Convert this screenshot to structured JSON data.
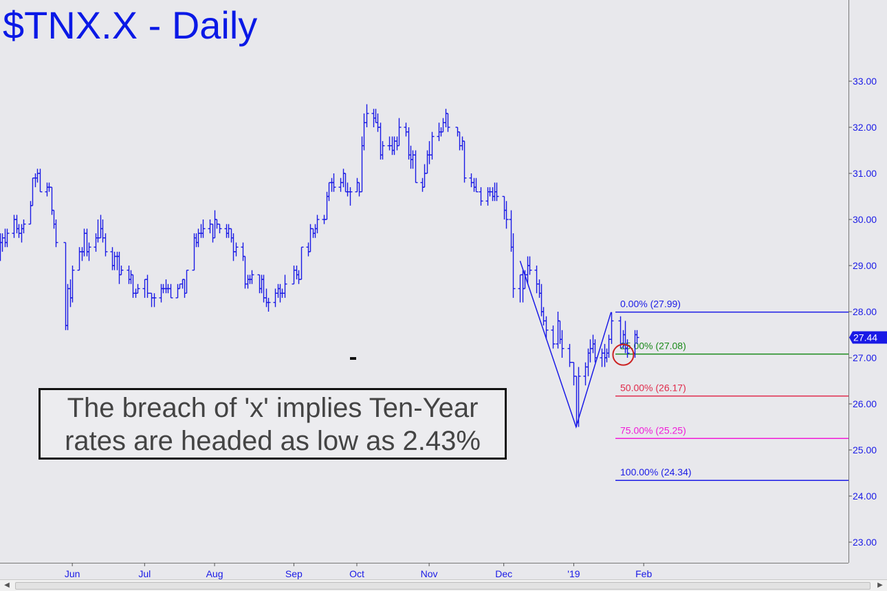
{
  "title": "$TNX.X - Daily",
  "annotation": "The breach of 'x' implies Ten-Year\nrates are headed as low as 2.43%",
  "chart_data": {
    "type": "ohlc",
    "series_color": "#1a1ae6",
    "ylim": [
      22.5,
      34.0
    ],
    "y_ticks": [
      23,
      24,
      25,
      26,
      27,
      28,
      29,
      30,
      31,
      32,
      33
    ],
    "x_labels": [
      "Jun",
      "Jul",
      "Aug",
      "Sep",
      "Oct",
      "Nov",
      "Dec",
      "'19",
      "Feb"
    ],
    "x_label_dates": [
      "2018-06-01",
      "2018-07-02",
      "2018-08-01",
      "2018-09-04",
      "2018-10-01",
      "2018-11-01",
      "2018-12-03",
      "2019-01-02",
      "2019-02-01"
    ],
    "last_price": "27.44",
    "marker_x_label": "x",
    "bars": [
      [
        "2018-05-01",
        29.4,
        29.7,
        29.1,
        29.5
      ],
      [
        "2018-05-02",
        29.5,
        29.7,
        29.3,
        29.6
      ],
      [
        "2018-05-03",
        29.6,
        29.8,
        29.4,
        29.5
      ],
      [
        "2018-05-04",
        29.5,
        29.8,
        29.4,
        29.7
      ],
      [
        "2018-05-07",
        29.7,
        30.1,
        29.6,
        30.0
      ],
      [
        "2018-05-08",
        30.0,
        30.1,
        29.7,
        29.8
      ],
      [
        "2018-05-09",
        29.8,
        29.9,
        29.6,
        29.7
      ],
      [
        "2018-05-10",
        29.7,
        29.9,
        29.5,
        29.8
      ],
      [
        "2018-05-11",
        29.8,
        30.0,
        29.7,
        29.9
      ],
      [
        "2018-05-14",
        29.9,
        30.4,
        29.9,
        30.3
      ],
      [
        "2018-05-15",
        30.3,
        30.9,
        30.3,
        30.9
      ],
      [
        "2018-05-16",
        30.9,
        31.0,
        30.7,
        30.9
      ],
      [
        "2018-05-17",
        30.9,
        31.1,
        30.8,
        31.0
      ],
      [
        "2018-05-18",
        31.0,
        31.1,
        30.6,
        30.6
      ],
      [
        "2018-05-21",
        30.6,
        30.8,
        30.5,
        30.7
      ],
      [
        "2018-05-22",
        30.7,
        30.8,
        30.6,
        30.7
      ],
      [
        "2018-05-23",
        30.7,
        30.7,
        30.1,
        30.2
      ],
      [
        "2018-05-24",
        30.2,
        30.2,
        29.8,
        29.9
      ],
      [
        "2018-05-25",
        29.9,
        30.0,
        29.4,
        29.5
      ],
      [
        "2018-05-29",
        29.5,
        29.5,
        27.6,
        27.7
      ],
      [
        "2018-05-30",
        27.7,
        28.6,
        27.6,
        28.5
      ],
      [
        "2018-05-31",
        28.5,
        28.7,
        28.1,
        28.3
      ],
      [
        "2018-06-01",
        28.3,
        29.0,
        28.2,
        28.9
      ],
      [
        "2018-06-04",
        28.9,
        29.4,
        28.9,
        29.3
      ],
      [
        "2018-06-05",
        29.3,
        29.4,
        29.1,
        29.3
      ],
      [
        "2018-06-06",
        29.3,
        29.8,
        29.2,
        29.7
      ],
      [
        "2018-06-07",
        29.7,
        29.8,
        29.2,
        29.3
      ],
      [
        "2018-06-08",
        29.3,
        29.5,
        29.1,
        29.4
      ],
      [
        "2018-06-11",
        29.4,
        29.7,
        29.3,
        29.6
      ],
      [
        "2018-06-12",
        29.6,
        30.0,
        29.5,
        29.6
      ],
      [
        "2018-06-13",
        29.6,
        30.1,
        29.6,
        29.8
      ],
      [
        "2018-06-14",
        29.8,
        30.0,
        29.5,
        29.6
      ],
      [
        "2018-06-15",
        29.6,
        29.7,
        29.2,
        29.3
      ],
      [
        "2018-06-18",
        29.3,
        29.4,
        28.9,
        29.0
      ],
      [
        "2018-06-19",
        29.0,
        29.3,
        28.9,
        29.2
      ],
      [
        "2018-06-20",
        29.2,
        29.3,
        28.9,
        29.2
      ],
      [
        "2018-06-21",
        29.2,
        29.3,
        28.6,
        28.8
      ],
      [
        "2018-06-22",
        28.8,
        29.0,
        28.8,
        28.9
      ],
      [
        "2018-06-25",
        28.9,
        29.0,
        28.6,
        28.7
      ],
      [
        "2018-06-26",
        28.7,
        28.9,
        28.6,
        28.8
      ],
      [
        "2018-06-27",
        28.8,
        28.8,
        28.3,
        28.4
      ],
      [
        "2018-06-28",
        28.4,
        28.5,
        28.3,
        28.4
      ],
      [
        "2018-06-29",
        28.4,
        28.6,
        28.4,
        28.5
      ],
      [
        "2018-07-02",
        28.5,
        28.7,
        28.3,
        28.7
      ],
      [
        "2018-07-03",
        28.7,
        28.8,
        28.3,
        28.4
      ],
      [
        "2018-07-05",
        28.4,
        28.4,
        28.1,
        28.3
      ],
      [
        "2018-07-06",
        28.3,
        28.4,
        28.1,
        28.3
      ],
      [
        "2018-07-09",
        28.3,
        28.6,
        28.2,
        28.5
      ],
      [
        "2018-07-10",
        28.5,
        28.6,
        28.4,
        28.5
      ],
      [
        "2018-07-11",
        28.5,
        28.7,
        28.4,
        28.5
      ],
      [
        "2018-07-12",
        28.5,
        28.6,
        28.4,
        28.5
      ],
      [
        "2018-07-13",
        28.5,
        28.6,
        28.3,
        28.3
      ],
      [
        "2018-07-16",
        28.3,
        28.6,
        28.3,
        28.5
      ],
      [
        "2018-07-17",
        28.5,
        28.6,
        28.5,
        28.6
      ],
      [
        "2018-07-18",
        28.6,
        28.7,
        28.5,
        28.7
      ],
      [
        "2018-07-19",
        28.7,
        28.7,
        28.3,
        28.4
      ],
      [
        "2018-07-20",
        28.4,
        28.9,
        28.4,
        28.9
      ],
      [
        "2018-07-23",
        28.9,
        29.7,
        28.9,
        29.6
      ],
      [
        "2018-07-24",
        29.6,
        29.7,
        29.4,
        29.5
      ],
      [
        "2018-07-25",
        29.5,
        29.8,
        29.4,
        29.7
      ],
      [
        "2018-07-26",
        29.7,
        29.9,
        29.6,
        29.7
      ],
      [
        "2018-07-27",
        29.7,
        30.0,
        29.6,
        29.8
      ],
      [
        "2018-07-30",
        29.8,
        30.0,
        29.7,
        29.9
      ],
      [
        "2018-07-31",
        29.9,
        29.9,
        29.5,
        29.6
      ],
      [
        "2018-08-01",
        29.6,
        30.2,
        29.6,
        30.0
      ],
      [
        "2018-08-02",
        30.0,
        30.0,
        29.8,
        29.9
      ],
      [
        "2018-08-03",
        29.9,
        29.9,
        29.7,
        29.8
      ],
      [
        "2018-08-06",
        29.8,
        29.9,
        29.6,
        29.7
      ],
      [
        "2018-08-07",
        29.7,
        29.9,
        29.6,
        29.8
      ],
      [
        "2018-08-08",
        29.8,
        29.8,
        29.5,
        29.6
      ],
      [
        "2018-08-09",
        29.6,
        29.7,
        29.1,
        29.3
      ],
      [
        "2018-08-10",
        29.3,
        29.5,
        29.2,
        29.4
      ],
      [
        "2018-08-13",
        29.4,
        29.5,
        29.1,
        29.2
      ],
      [
        "2018-08-14",
        29.2,
        29.2,
        28.5,
        28.6
      ],
      [
        "2018-08-15",
        28.6,
        28.8,
        28.5,
        28.7
      ],
      [
        "2018-08-16",
        28.7,
        28.8,
        28.6,
        28.7
      ],
      [
        "2018-08-17",
        28.7,
        28.9,
        28.6,
        28.8
      ],
      [
        "2018-08-20",
        28.8,
        28.8,
        28.4,
        28.5
      ],
      [
        "2018-08-21",
        28.5,
        28.8,
        28.4,
        28.7
      ],
      [
        "2018-08-22",
        28.7,
        28.8,
        28.2,
        28.3
      ],
      [
        "2018-08-23",
        28.3,
        28.5,
        28.1,
        28.2
      ],
      [
        "2018-08-24",
        28.2,
        28.3,
        28.0,
        28.2
      ],
      [
        "2018-08-27",
        28.2,
        28.5,
        28.1,
        28.4
      ],
      [
        "2018-08-28",
        28.4,
        28.6,
        28.3,
        28.5
      ],
      [
        "2018-08-29",
        28.5,
        28.6,
        28.2,
        28.4
      ],
      [
        "2018-08-30",
        28.4,
        28.5,
        28.3,
        28.4
      ],
      [
        "2018-08-31",
        28.4,
        28.8,
        28.3,
        28.6
      ],
      [
        "2018-09-04",
        28.6,
        29.0,
        28.6,
        28.9
      ],
      [
        "2018-09-05",
        28.9,
        29.0,
        28.7,
        28.8
      ],
      [
        "2018-09-06",
        28.8,
        28.9,
        28.6,
        28.7
      ],
      [
        "2018-09-07",
        28.7,
        29.4,
        28.7,
        29.4
      ],
      [
        "2018-09-10",
        29.4,
        29.5,
        29.2,
        29.3
      ],
      [
        "2018-09-11",
        29.3,
        29.9,
        29.3,
        29.8
      ],
      [
        "2018-09-12",
        29.8,
        29.8,
        29.6,
        29.7
      ],
      [
        "2018-09-13",
        29.7,
        29.9,
        29.6,
        29.8
      ],
      [
        "2018-09-14",
        29.8,
        30.1,
        29.7,
        30.0
      ],
      [
        "2018-09-17",
        30.0,
        30.1,
        29.9,
        30.0
      ],
      [
        "2018-09-18",
        30.0,
        30.6,
        30.0,
        30.5
      ],
      [
        "2018-09-19",
        30.5,
        30.8,
        30.4,
        30.8
      ],
      [
        "2018-09-20",
        30.8,
        30.9,
        30.6,
        30.8
      ],
      [
        "2018-09-21",
        30.8,
        31.0,
        30.6,
        30.7
      ],
      [
        "2018-09-24",
        30.7,
        30.9,
        30.6,
        30.8
      ],
      [
        "2018-09-25",
        30.8,
        31.1,
        30.7,
        31.0
      ],
      [
        "2018-09-26",
        31.0,
        31.0,
        30.6,
        30.6
      ],
      [
        "2018-09-27",
        30.6,
        30.8,
        30.5,
        30.6
      ],
      [
        "2018-09-28",
        30.6,
        30.7,
        30.3,
        30.6
      ],
      [
        "2018-10-01",
        30.6,
        30.9,
        30.6,
        30.8
      ],
      [
        "2018-10-02",
        30.8,
        30.8,
        30.5,
        30.6
      ],
      [
        "2018-10-03",
        30.6,
        31.8,
        30.6,
        31.6
      ],
      [
        "2018-10-04",
        31.6,
        32.3,
        31.5,
        32.1
      ],
      [
        "2018-10-05",
        32.1,
        32.5,
        32.0,
        32.3
      ],
      [
        "2018-10-08",
        32.3,
        32.4,
        32.0,
        32.2
      ],
      [
        "2018-10-09",
        32.2,
        32.4,
        32.1,
        32.1
      ],
      [
        "2018-10-10",
        32.1,
        32.3,
        31.9,
        32.0
      ],
      [
        "2018-10-11",
        32.0,
        32.1,
        31.3,
        31.4
      ],
      [
        "2018-10-12",
        31.4,
        31.7,
        31.3,
        31.6
      ],
      [
        "2018-10-15",
        31.6,
        31.8,
        31.5,
        31.6
      ],
      [
        "2018-10-16",
        31.6,
        31.8,
        31.4,
        31.5
      ],
      [
        "2018-10-17",
        31.5,
        31.8,
        31.4,
        31.7
      ],
      [
        "2018-10-18",
        31.7,
        31.8,
        31.5,
        31.6
      ],
      [
        "2018-10-19",
        31.6,
        32.2,
        31.6,
        32.0
      ],
      [
        "2018-10-22",
        32.0,
        32.1,
        31.8,
        31.9
      ],
      [
        "2018-10-23",
        31.9,
        32.0,
        31.3,
        31.4
      ],
      [
        "2018-10-24",
        31.4,
        31.6,
        31.1,
        31.3
      ],
      [
        "2018-10-25",
        31.3,
        31.5,
        31.1,
        31.4
      ],
      [
        "2018-10-26",
        31.4,
        31.5,
        30.8,
        30.8
      ],
      [
        "2018-10-29",
        30.8,
        30.9,
        30.6,
        30.7
      ],
      [
        "2018-10-30",
        30.7,
        31.2,
        30.7,
        31.0
      ],
      [
        "2018-10-31",
        31.0,
        31.5,
        31.0,
        31.4
      ],
      [
        "2018-11-01",
        31.4,
        31.7,
        31.2,
        31.4
      ],
      [
        "2018-11-02",
        31.4,
        31.9,
        31.3,
        31.8
      ],
      [
        "2018-11-05",
        31.8,
        32.1,
        31.7,
        31.9
      ],
      [
        "2018-11-06",
        31.9,
        32.0,
        31.8,
        31.9
      ],
      [
        "2018-11-07",
        31.9,
        32.2,
        31.9,
        32.1
      ],
      [
        "2018-11-08",
        32.1,
        32.4,
        32.0,
        32.3
      ],
      [
        "2018-11-09",
        32.3,
        32.3,
        31.9,
        32.0
      ],
      [
        "2018-11-13",
        32.0,
        32.0,
        31.8,
        31.9
      ],
      [
        "2018-11-14",
        31.9,
        31.9,
        31.5,
        31.6
      ],
      [
        "2018-11-15",
        31.6,
        31.8,
        31.5,
        31.7
      ],
      [
        "2018-11-16",
        31.7,
        31.7,
        30.8,
        30.9
      ],
      [
        "2018-11-19",
        30.9,
        31.0,
        30.7,
        30.8
      ],
      [
        "2018-11-20",
        30.8,
        30.9,
        30.6,
        30.7
      ],
      [
        "2018-11-21",
        30.7,
        30.9,
        30.6,
        30.6
      ],
      [
        "2018-11-23",
        30.6,
        30.7,
        30.3,
        30.4
      ],
      [
        "2018-11-26",
        30.4,
        30.7,
        30.3,
        30.6
      ],
      [
        "2018-11-27",
        30.6,
        30.7,
        30.5,
        30.6
      ],
      [
        "2018-11-28",
        30.6,
        30.7,
        30.4,
        30.5
      ],
      [
        "2018-11-29",
        30.5,
        30.8,
        30.4,
        30.6
      ],
      [
        "2018-11-30",
        30.6,
        30.8,
        30.4,
        30.5
      ],
      [
        "2018-12-03",
        30.5,
        30.5,
        30.0,
        30.2
      ],
      [
        "2018-12-04",
        30.2,
        30.4,
        29.8,
        30.0
      ],
      [
        "2018-12-06",
        30.0,
        30.2,
        29.3,
        29.4
      ],
      [
        "2018-12-07",
        29.4,
        29.7,
        28.3,
        28.5
      ],
      [
        "2018-12-10",
        28.5,
        28.8,
        28.2,
        28.8
      ],
      [
        "2018-12-11",
        28.8,
        28.9,
        28.2,
        28.5
      ],
      [
        "2018-12-12",
        28.5,
        28.9,
        28.5,
        28.8
      ],
      [
        "2018-12-13",
        28.8,
        29.2,
        28.6,
        29.0
      ],
      [
        "2018-12-14",
        29.0,
        29.2,
        28.8,
        28.9
      ],
      [
        "2018-12-17",
        28.9,
        29.0,
        28.4,
        28.6
      ],
      [
        "2018-12-18",
        28.6,
        28.7,
        28.3,
        28.4
      ],
      [
        "2018-12-19",
        28.4,
        28.6,
        27.9,
        28.0
      ],
      [
        "2018-12-20",
        28.0,
        28.1,
        27.7,
        27.8
      ],
      [
        "2018-12-21",
        27.8,
        27.9,
        27.4,
        27.6
      ],
      [
        "2018-12-24",
        27.6,
        27.7,
        27.2,
        27.3
      ],
      [
        "2018-12-26",
        27.3,
        28.0,
        27.2,
        27.8
      ],
      [
        "2018-12-27",
        27.8,
        27.8,
        27.3,
        27.4
      ],
      [
        "2018-12-28",
        27.4,
        27.6,
        27.0,
        27.2
      ],
      [
        "2018-12-31",
        27.2,
        27.3,
        26.8,
        26.9
      ],
      [
        "2019-01-02",
        26.9,
        26.9,
        26.4,
        26.6
      ],
      [
        "2019-01-03",
        26.6,
        26.6,
        25.5,
        25.6
      ],
      [
        "2019-01-04",
        25.6,
        26.8,
        25.5,
        26.6
      ],
      [
        "2019-01-07",
        26.6,
        26.9,
        26.4,
        26.8
      ],
      [
        "2019-01-08",
        26.8,
        27.2,
        26.6,
        27.1
      ],
      [
        "2019-01-09",
        27.1,
        27.4,
        26.9,
        27.2
      ],
      [
        "2019-01-10",
        27.2,
        27.5,
        27.1,
        27.3
      ],
      [
        "2019-01-11",
        27.3,
        27.4,
        26.9,
        27.0
      ],
      [
        "2019-01-14",
        27.0,
        27.2,
        26.8,
        27.1
      ],
      [
        "2019-01-15",
        27.1,
        27.3,
        26.8,
        27.0
      ],
      [
        "2019-01-16",
        27.0,
        27.2,
        26.9,
        27.1
      ],
      [
        "2019-01-17",
        27.1,
        27.5,
        27.0,
        27.4
      ],
      [
        "2019-01-18",
        27.4,
        27.99,
        27.3,
        27.8
      ],
      [
        "2019-01-22",
        27.8,
        27.9,
        27.2,
        27.3
      ],
      [
        "2019-01-23",
        27.3,
        27.6,
        27.2,
        27.5
      ],
      [
        "2019-01-24",
        27.5,
        27.8,
        27.1,
        27.2
      ],
      [
        "2019-01-25",
        27.2,
        27.4,
        27.0,
        27.1
      ],
      [
        "2019-01-28",
        27.1,
        27.6,
        27.0,
        27.5
      ],
      [
        "2019-01-29",
        27.5,
        27.6,
        27.3,
        27.44
      ]
    ],
    "swing_lines": [
      [
        "2018-12-10",
        29.1
      ],
      [
        "2019-01-03",
        25.5
      ],
      [
        "2019-01-18",
        27.99
      ]
    ],
    "retracements": [
      {
        "label": "0.00% (27.99)",
        "value": 27.99,
        "color": "#1a1ae6"
      },
      {
        "label": "25.00% (27.08)",
        "value": 27.08,
        "color": "#1a8a1a"
      },
      {
        "label": "50.00% (26.17)",
        "value": 26.17,
        "color": "#e02a4a"
      },
      {
        "label": "75.00% (25.25)",
        "value": 25.25,
        "color": "#f01ad8"
      },
      {
        "label": "100.00% (24.34)",
        "value": 24.34,
        "color": "#1a1ae6"
      }
    ],
    "circle_marker": {
      "date": "2019-01-25",
      "value": 27.08,
      "color": "#cc2222"
    }
  }
}
